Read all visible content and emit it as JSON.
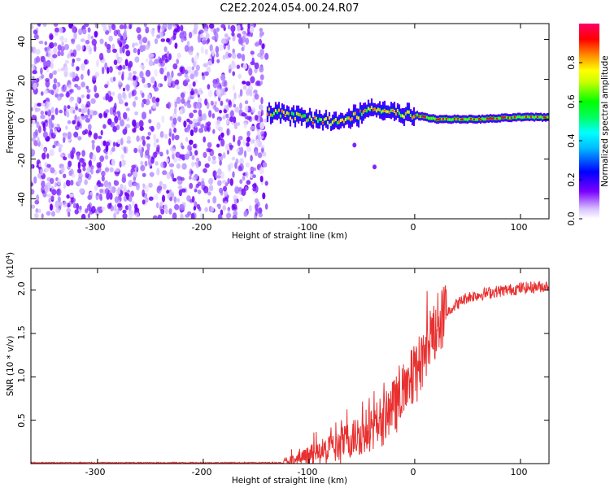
{
  "title": "C2E2.2024.054.00.24.R07",
  "chart_data": [
    {
      "type": "heatmap",
      "name": "spectrogram",
      "xlabel": "Height of straight line (km)",
      "ylabel": "Frequency (Hz)",
      "xlim": [
        -363,
        127
      ],
      "ylim": [
        -50,
        48
      ],
      "xticks": [
        -300,
        -200,
        -100,
        0,
        100
      ],
      "xtick_labels": [
        "-300",
        "-200",
        "-100",
        "0",
        "100"
      ],
      "yticks": [
        40,
        20,
        0,
        -20,
        -40
      ],
      "ytick_labels": [
        "40",
        "20",
        "0",
        "-20",
        "-40"
      ],
      "noise_region_km": [
        -363,
        -140
      ],
      "signal_start_km": -140,
      "signal_trace": {
        "x": [
          -140,
          -120,
          -100,
          -80,
          -60,
          -40,
          -20,
          0,
          20,
          60,
          100,
          127
        ],
        "y": [
          4,
          2,
          0,
          -1,
          1,
          5,
          3,
          2,
          0,
          0,
          1,
          1
        ]
      },
      "colorbar": {
        "label": "Normalized spectral amplitude",
        "range": [
          0,
          1
        ],
        "ticks": [
          0.0,
          0.2,
          0.4,
          0.6,
          0.8
        ],
        "tick_labels": [
          "0.0",
          "0.2",
          "0.4",
          "0.6",
          "0.8"
        ],
        "colors": [
          "#ffffff",
          "#7a00ff",
          "#0000ff",
          "#00ffff",
          "#00ff00",
          "#ffff00",
          "#ff8800",
          "#ff0000",
          "#ff0066"
        ]
      }
    },
    {
      "type": "line",
      "name": "snr",
      "xlabel": "Height of straight line (km)",
      "ylabel": "SNR (10 * v/v)",
      "scale_label": "(x10",
      "scale_exp": "4",
      "scale_close": ")",
      "xlim": [
        -363,
        127
      ],
      "ylim": [
        0,
        2.25
      ],
      "xticks": [
        -300,
        -200,
        -100,
        0,
        100
      ],
      "xtick_labels": [
        "-300",
        "-200",
        "-100",
        "0",
        "100"
      ],
      "yticks": [
        0.5,
        1.0,
        1.5,
        2.0
      ],
      "ytick_labels": [
        "0.5",
        "1.0",
        "1.5",
        "2.0"
      ],
      "color": "#e83030",
      "trend": {
        "x": [
          -363,
          -125,
          -110,
          -90,
          -70,
          -50,
          -30,
          -15,
          0,
          10,
          20,
          35,
          50,
          75,
          100,
          127
        ],
        "y": [
          0.01,
          0.01,
          0.05,
          0.12,
          0.22,
          0.35,
          0.5,
          0.72,
          1.02,
          1.3,
          1.58,
          1.8,
          1.92,
          1.98,
          2.02,
          2.05
        ]
      }
    }
  ]
}
